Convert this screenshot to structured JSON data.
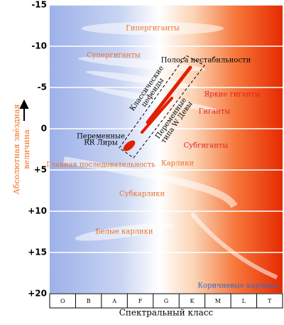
{
  "y_axis": {
    "label_line1": "Абсолютная звёздная",
    "label_line2": "величина",
    "lim": [
      -15,
      20
    ],
    "ticks": [
      {
        "value": -15,
        "label": "-15"
      },
      {
        "value": -10,
        "label": "-10"
      },
      {
        "value": -5,
        "label": "-5"
      },
      0,
      {
        "value": 5,
        "label": "+5"
      },
      {
        "value": 10,
        "label": "+10"
      },
      {
        "value": 15,
        "label": "+15"
      },
      {
        "value": 20,
        "label": "+20"
      }
    ]
  },
  "x_axis": {
    "label": "Спектральный класс",
    "categories": [
      "O",
      "B",
      "A",
      "F",
      "G",
      "K",
      "M",
      "L",
      "T"
    ]
  },
  "regions": {
    "hypergiants": "Гипергиганты",
    "supergiants": "Супергиганты",
    "instability_strip": "Полоса нестабильности",
    "cepheids_line1": "Классические",
    "cepheids_line2": "цефеиды",
    "bright_giants": "Яркие гиганты",
    "giants": "Гиганты",
    "w_virginis_line1": "Переменные",
    "w_virginis_line2": "типа W Девы",
    "rr_lyrae_line1": "Переменные",
    "rr_lyrae_line2": "RR Лиры",
    "subgiants": "Субгиганты",
    "main_sequence": "Главная последовательность",
    "dwarfs": "Карлики",
    "subdwarfs": "Субкарлики",
    "white_dwarfs": "Белые карлики",
    "brown_dwarfs": "Коричневые карлики"
  }
}
